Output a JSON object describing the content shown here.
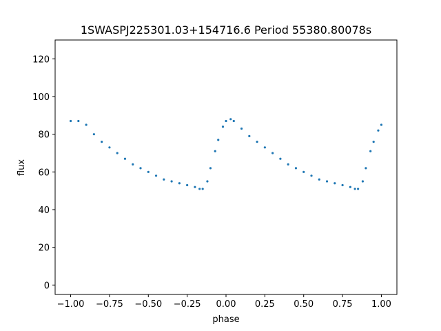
{
  "chart_data": {
    "type": "scatter",
    "title": "1SWASPJ225301.03+154716.6 Period 55380.80078s",
    "xlabel": "phase",
    "ylabel": "flux",
    "xlim": [
      -1.1,
      1.1
    ],
    "ylim": [
      -5,
      130
    ],
    "xticks": [
      -1.0,
      -0.75,
      -0.5,
      -0.25,
      0.0,
      0.25,
      0.5,
      0.75,
      1.0
    ],
    "xtick_labels": [
      "−1.00",
      "−0.75",
      "−0.50",
      "−0.25",
      "0.00",
      "0.25",
      "0.50",
      "0.75",
      "1.00"
    ],
    "yticks": [
      0,
      20,
      40,
      60,
      80,
      100,
      120
    ],
    "ytick_labels": [
      "0",
      "20",
      "40",
      "60",
      "80",
      "100",
      "120"
    ],
    "grid": false,
    "legend": "none",
    "marker_color": "#1f77b4",
    "series": [
      {
        "x": [
          -1.0,
          -0.95,
          -0.9,
          -0.85,
          -0.8,
          -0.75,
          -0.7,
          -0.65,
          -0.6,
          -0.55,
          -0.5,
          -0.45,
          -0.4,
          -0.35,
          -0.3,
          -0.25,
          -0.2,
          -0.17,
          -0.15,
          -0.12,
          -0.1,
          -0.07,
          -0.05,
          -0.02,
          0.0,
          0.03,
          0.05,
          0.1,
          0.15,
          0.2,
          0.25,
          0.3,
          0.35,
          0.4,
          0.45,
          0.5,
          0.55,
          0.6,
          0.65,
          0.7,
          0.75,
          0.8,
          0.83,
          0.85,
          0.88,
          0.9,
          0.93,
          0.95,
          0.98,
          1.0
        ],
        "y": [
          87,
          87,
          85,
          80,
          76,
          73,
          70,
          67,
          64,
          62,
          60,
          58,
          56,
          55,
          54,
          53,
          52,
          51,
          51,
          55,
          62,
          71,
          77,
          84,
          87,
          88,
          87,
          83,
          79,
          76,
          73,
          70,
          67,
          64,
          62,
          60,
          58,
          56,
          55,
          54,
          53,
          52,
          51,
          51,
          55,
          62,
          71,
          76,
          82,
          85
        ]
      }
    ]
  }
}
